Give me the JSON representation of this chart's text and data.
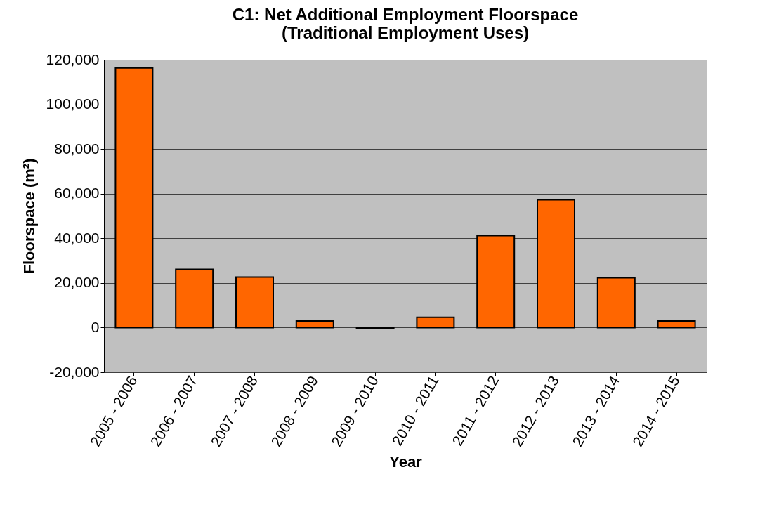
{
  "chart_data": {
    "type": "bar",
    "title": "C1: Net Additional Employment Floorspace\n(Traditional Employment Uses)",
    "xlabel": "Year",
    "ylabel": "Floorspace (m²)",
    "categories": [
      "2005 - 2006",
      "2006 - 2007",
      "2007 - 2008",
      "2008 - 2009",
      "2009 - 2010",
      "2010 - 2011",
      "2011 - 2012",
      "2012 - 2013",
      "2013 - 2014",
      "2014 - 2015"
    ],
    "values": [
      116300,
      26100,
      22600,
      3000,
      -200,
      4600,
      41200,
      57200,
      22300,
      3000
    ],
    "color": "#ff6600",
    "ylim": [
      -20000,
      120000
    ],
    "yticks": [
      {
        "value": -20000,
        "label": "-20,000"
      },
      0,
      {
        "value": 20000,
        "label": "20,000"
      },
      {
        "value": 40000,
        "label": "40,000"
      },
      {
        "value": 60000,
        "label": "60,000"
      },
      {
        "value": 80000,
        "label": "80,000"
      },
      {
        "value": 100000,
        "label": "100,000"
      },
      {
        "value": 120000,
        "label": "120,000"
      }
    ],
    "grid": "y"
  }
}
